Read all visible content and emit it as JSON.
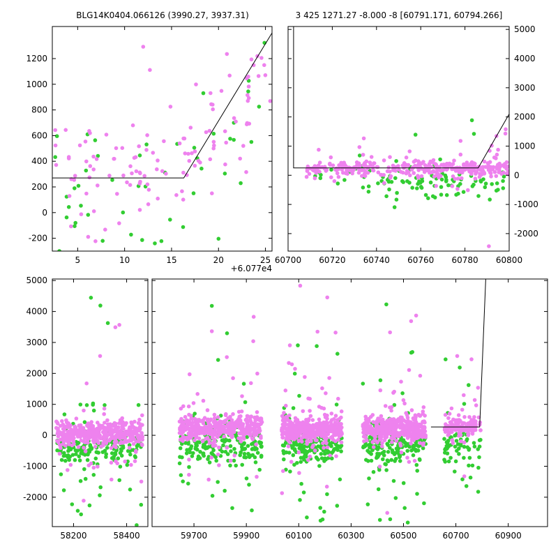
{
  "colors": {
    "magenta": "#ee82ee",
    "green": "#32cd32",
    "line": "#000000",
    "background": "#ffffff"
  },
  "style": {
    "marker_radius": 2.8
  },
  "chart_data": [
    {
      "id": "top_left",
      "type": "scatter",
      "title": "BLG14K0404.066126 (3990.27, 3937.31)",
      "x_offset_label": "+6.077e4",
      "ylim": [
        -300,
        1450
      ],
      "yticks": [
        -200,
        0,
        200,
        400,
        600,
        800,
        1000,
        1200
      ],
      "ytick_side": "left",
      "x_segments": [
        {
          "xlim": [
            2.3,
            25.7
          ],
          "ticks": [
            5,
            10,
            15,
            20,
            25
          ]
        }
      ],
      "model_line": [
        [
          2.3,
          270
        ],
        [
          16.3,
          270
        ],
        [
          25.7,
          1400
        ]
      ],
      "clusters": [
        {
          "series": "green",
          "n": 26,
          "x": [
            2.5,
            16.5
          ],
          "dist": "normal",
          "y_mean": 130,
          "y_sd": 300
        },
        {
          "series": "green",
          "n": 18,
          "x": [
            15.5,
            25.7
          ],
          "dist": "trend",
          "y_start": 150,
          "y_end": 750,
          "y_sd": 350
        },
        {
          "series": "green",
          "n": 4,
          "x": [
            4,
            21
          ],
          "dist": "uniform",
          "y_range": [
            -280,
            -120
          ]
        },
        {
          "series": "magenta",
          "n": 68,
          "x": [
            2.3,
            16.5
          ],
          "dist": "normal",
          "y_mean": 330,
          "y_sd": 230
        },
        {
          "series": "magenta",
          "n": 52,
          "x": [
            16,
            25.7
          ],
          "dist": "trend",
          "y_start": 380,
          "y_end": 1080,
          "y_sd": 260
        },
        {
          "series": "magenta",
          "n": 3,
          "x": [
            2.4,
            9
          ],
          "dist": "uniform",
          "y_range": [
            -260,
            -60
          ]
        },
        {
          "series": "magenta",
          "n": 1,
          "x": [
            11.8,
            12.3
          ],
          "dist": "uniform",
          "y_range": [
            1240,
            1300
          ]
        }
      ]
    },
    {
      "id": "top_right",
      "type": "scatter",
      "title": "3 425 1271.27 -8.000 -8 [60791.171, 60794.266]",
      "ylim": [
        -2600,
        5100
      ],
      "yticks": [
        -2000,
        -1000,
        0,
        1000,
        2000,
        3000,
        4000,
        5000
      ],
      "ytick_side": "right",
      "x_segments": [
        {
          "xlim": [
            60700,
            60800
          ],
          "ticks": [
            60700,
            60720,
            60740,
            60760,
            60780,
            60800
          ]
        }
      ],
      "model_line": [
        [
          60702.5,
          5100
        ],
        [
          60702.5,
          250
        ],
        [
          60786,
          250
        ],
        [
          60800,
          2100
        ]
      ],
      "clusters": [
        {
          "series": "green",
          "n": 80,
          "x": [
            60733,
            60798
          ],
          "dist": "normal",
          "y_mean": -300,
          "y_sd": 300
        },
        {
          "series": "green",
          "n": 26,
          "x": [
            60712,
            60770
          ],
          "dist": "normal",
          "y_mean": 100,
          "y_sd": 280
        },
        {
          "series": "green",
          "n": 3,
          "x": [
            60755,
            60792
          ],
          "dist": "uniform",
          "y_range": [
            1200,
            2100
          ]
        },
        {
          "series": "magenta",
          "n": 230,
          "x": [
            60708,
            60800
          ],
          "dist": "normal",
          "y_mean": 230,
          "y_sd": 150
        },
        {
          "series": "magenta",
          "n": 85,
          "x": [
            60755,
            60796
          ],
          "dist": "normal",
          "y_mean": 210,
          "y_sd": 120
        },
        {
          "series": "magenta",
          "n": 40,
          "x": [
            60712,
            60800
          ],
          "dist": "normal",
          "y_mean": 300,
          "y_sd": 430
        },
        {
          "series": "magenta",
          "n": 5,
          "x": [
            60788,
            60800
          ],
          "dist": "trend",
          "y_start": 420,
          "y_end": 1800,
          "y_sd": 180
        },
        {
          "series": "magenta",
          "n": 1,
          "x": [
            60790,
            60792
          ],
          "dist": "uniform",
          "y_range": [
            -2460,
            -2360
          ]
        }
      ]
    },
    {
      "id": "bottom",
      "type": "scatter",
      "title": "",
      "ylim": [
        -2950,
        5050
      ],
      "yticks": [
        -2000,
        -1000,
        0,
        1000,
        2000,
        3000,
        4000,
        5000
      ],
      "ytick_side": "left",
      "x_segments": [
        {
          "xlim": [
            58120,
            58480
          ],
          "ticks": [
            58200,
            58400
          ]
        },
        {
          "xlim": [
            59540,
            61050
          ],
          "ticks": [
            59700,
            59900,
            60100,
            60300,
            60500,
            60700,
            60900
          ]
        }
      ],
      "model_line": [
        [
          60605,
          270
        ],
        [
          60791,
          270
        ],
        [
          60814,
          5050
        ]
      ],
      "clusters": [
        {
          "series": "green",
          "n": 150,
          "x": [
            58135,
            58460
          ],
          "dist": "normal",
          "y_mean": -420,
          "y_sd": 280
        },
        {
          "series": "green",
          "n": 40,
          "x": [
            58135,
            58460
          ],
          "dist": "normal",
          "y_mean": -400,
          "y_sd": 1000
        },
        {
          "series": "green",
          "n": 3,
          "x": [
            58160,
            58430
          ],
          "dist": "uniform",
          "y_range": [
            2600,
            4800
          ]
        },
        {
          "series": "green",
          "n": 2,
          "x": [
            58160,
            58430
          ],
          "dist": "uniform",
          "y_range": [
            -2850,
            -2400
          ]
        },
        {
          "series": "magenta",
          "n": 380,
          "x": [
            58135,
            58460
          ],
          "dist": "normal",
          "y_mean": 60,
          "y_sd": 200
        },
        {
          "series": "magenta",
          "n": 45,
          "x": [
            58135,
            58460
          ],
          "dist": "normal",
          "y_mean": 150,
          "y_sd": 950
        },
        {
          "series": "magenta",
          "n": 3,
          "x": [
            58180,
            58420
          ],
          "dist": "uniform",
          "y_range": [
            2500,
            4200
          ]
        },
        {
          "series": "green",
          "n": 150,
          "x": [
            59645,
            59960
          ],
          "dist": "normal",
          "y_mean": -300,
          "y_sd": 280
        },
        {
          "series": "green",
          "n": 40,
          "x": [
            59645,
            59960
          ],
          "dist": "normal",
          "y_mean": -350,
          "y_sd": 1000
        },
        {
          "series": "green",
          "n": 3,
          "x": [
            59680,
            59930
          ],
          "dist": "uniform",
          "y_range": [
            2400,
            4600
          ]
        },
        {
          "series": "green",
          "n": 2,
          "x": [
            59680,
            59930
          ],
          "dist": "uniform",
          "y_range": [
            -2850,
            -2300
          ]
        },
        {
          "series": "magenta",
          "n": 380,
          "x": [
            59645,
            59960
          ],
          "dist": "normal",
          "y_mean": 230,
          "y_sd": 200
        },
        {
          "series": "magenta",
          "n": 45,
          "x": [
            59645,
            59960
          ],
          "dist": "normal",
          "y_mean": 250,
          "y_sd": 950
        },
        {
          "series": "magenta",
          "n": 3,
          "x": [
            59680,
            59930
          ],
          "dist": "uniform",
          "y_range": [
            2600,
            4800
          ]
        },
        {
          "series": "green",
          "n": 150,
          "x": [
            60035,
            60265
          ],
          "dist": "normal",
          "y_mean": -380,
          "y_sd": 280
        },
        {
          "series": "green",
          "n": 40,
          "x": [
            60035,
            60265
          ],
          "dist": "normal",
          "y_mean": -350,
          "y_sd": 1000
        },
        {
          "series": "green",
          "n": 2,
          "x": [
            60060,
            60240
          ],
          "dist": "uniform",
          "y_range": [
            2500,
            4200
          ]
        },
        {
          "series": "green",
          "n": 2,
          "x": [
            60060,
            60240
          ],
          "dist": "uniform",
          "y_range": [
            -2850,
            -2400
          ]
        },
        {
          "series": "magenta",
          "n": 380,
          "x": [
            60035,
            60265
          ],
          "dist": "normal",
          "y_mean": 180,
          "y_sd": 200
        },
        {
          "series": "magenta",
          "n": 45,
          "x": [
            60035,
            60265
          ],
          "dist": "normal",
          "y_mean": 250,
          "y_sd": 1000
        },
        {
          "series": "magenta",
          "n": 4,
          "x": [
            60060,
            60240
          ],
          "dist": "uniform",
          "y_range": [
            2600,
            4950
          ]
        },
        {
          "series": "green",
          "n": 150,
          "x": [
            60345,
            60585
          ],
          "dist": "normal",
          "y_mean": -350,
          "y_sd": 280
        },
        {
          "series": "green",
          "n": 40,
          "x": [
            60345,
            60585
          ],
          "dist": "normal",
          "y_mean": -350,
          "y_sd": 1000
        },
        {
          "series": "green",
          "n": 3,
          "x": [
            60370,
            60560
          ],
          "dist": "uniform",
          "y_range": [
            2400,
            4700
          ]
        },
        {
          "series": "green",
          "n": 2,
          "x": [
            60370,
            60560
          ],
          "dist": "uniform",
          "y_range": [
            -2850,
            -2400
          ]
        },
        {
          "series": "magenta",
          "n": 380,
          "x": [
            60345,
            60585
          ],
          "dist": "normal",
          "y_mean": 200,
          "y_sd": 200
        },
        {
          "series": "magenta",
          "n": 45,
          "x": [
            60345,
            60585
          ],
          "dist": "normal",
          "y_mean": 250,
          "y_sd": 950
        },
        {
          "series": "magenta",
          "n": 3,
          "x": [
            60370,
            60560
          ],
          "dist": "uniform",
          "y_range": [
            2500,
            4300
          ]
        },
        {
          "series": "green",
          "n": 55,
          "x": [
            60655,
            60795
          ],
          "dist": "normal",
          "y_mean": -300,
          "y_sd": 280
        },
        {
          "series": "green",
          "n": 10,
          "x": [
            60655,
            60795
          ],
          "dist": "normal",
          "y_mean": -300,
          "y_sd": 900
        },
        {
          "series": "green",
          "n": 2,
          "x": [
            60670,
            60780
          ],
          "dist": "uniform",
          "y_range": [
            1400,
            2200
          ]
        },
        {
          "series": "magenta",
          "n": 130,
          "x": [
            60655,
            60795
          ],
          "dist": "normal",
          "y_mean": 280,
          "y_sd": 150
        },
        {
          "series": "magenta",
          "n": 15,
          "x": [
            60655,
            60795
          ],
          "dist": "normal",
          "y_mean": 350,
          "y_sd": 700
        },
        {
          "series": "magenta",
          "n": 2,
          "x": [
            60670,
            60760
          ],
          "dist": "uniform",
          "y_range": [
            1600,
            2600
          ]
        }
      ]
    }
  ]
}
